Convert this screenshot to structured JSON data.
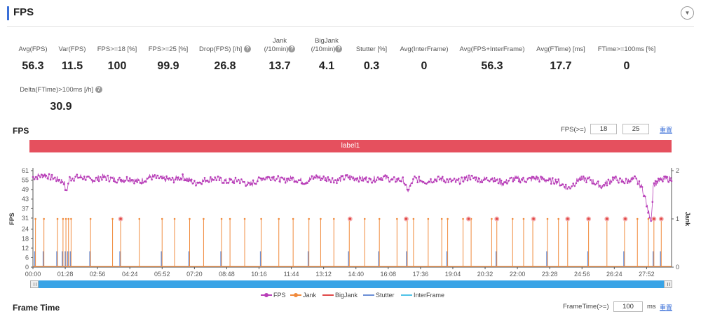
{
  "section": {
    "title": "FPS"
  },
  "stats_row1": [
    {
      "label": "Avg(FPS)",
      "value": "56.3"
    },
    {
      "label": "Var(FPS)",
      "value": "11.5"
    },
    {
      "label": "FPS>=18 [%]",
      "value": "100"
    },
    {
      "label": "FPS>=25 [%]",
      "value": "99.9"
    },
    {
      "label": "Drop(FPS) [/h]",
      "value": "26.8"
    },
    {
      "label": "Jank",
      "label2": "(/10min)",
      "value": "13.7"
    },
    {
      "label": "BigJank",
      "label2": "(/10min)",
      "value": "4.1"
    },
    {
      "label": "Stutter [%]",
      "value": "0.3"
    },
    {
      "label": "Avg(InterFrame)",
      "value": "0"
    },
    {
      "label": "Avg(FPS+InterFrame)",
      "value": "56.3"
    },
    {
      "label": "Avg(FTime) [ms]",
      "value": "17.7"
    },
    {
      "label": "FTime>=100ms [%]",
      "value": "0"
    }
  ],
  "stats_row2": [
    {
      "label": "Delta(FTime)>100ms [/h]",
      "value": "30.9"
    }
  ],
  "fps_chart": {
    "title": "FPS",
    "threshold_label": "FPS(>=)",
    "threshold1": "18",
    "threshold2": "25",
    "reset_label": "重置",
    "label_band": "label1",
    "y_axis_title": "FPS",
    "y2_axis_title": "Jank",
    "help_glyph": "?"
  },
  "legend": [
    "FPS",
    "Jank",
    "BigJank",
    "Stutter",
    "InterFrame"
  ],
  "frame_time": {
    "title": "Frame Time",
    "threshold_label": "FrameTime(>=)",
    "threshold_value": "100",
    "unit": "ms",
    "reset_label": "重置"
  },
  "colors": {
    "fps": "#b83eb8",
    "jank": "#f08a3c",
    "bigjank": "#e04848",
    "stutter": "#6b8fd6",
    "interframe": "#4fc3e8",
    "label_band": "#e5505e",
    "slider": "#38a3e6"
  },
  "chart_data": {
    "type": "line",
    "x_label": "",
    "y_label": "FPS",
    "y2_label": "Jank",
    "ylim": [
      0,
      61
    ],
    "y_ticks": [
      0,
      6,
      12,
      18,
      24,
      31,
      37,
      43,
      49,
      55,
      61
    ],
    "y2lim": [
      0,
      2
    ],
    "y2_ticks": [
      0,
      1,
      2
    ],
    "x_ticks": [
      "00:00",
      "01:28",
      "02:56",
      "04:24",
      "05:52",
      "07:20",
      "08:48",
      "10:16",
      "11:44",
      "13:12",
      "14:40",
      "16:08",
      "17:36",
      "19:04",
      "20:32",
      "22:00",
      "23:28",
      "24:56",
      "26:24",
      "27:52"
    ],
    "x_range_seconds": [
      0,
      1740
    ],
    "fps_series": {
      "name": "FPS",
      "points": [
        [
          0,
          57
        ],
        [
          30,
          58
        ],
        [
          60,
          56
        ],
        [
          85,
          54
        ],
        [
          90,
          47
        ],
        [
          100,
          56
        ],
        [
          130,
          57
        ],
        [
          160,
          55
        ],
        [
          190,
          57
        ],
        [
          230,
          55
        ],
        [
          260,
          56
        ],
        [
          290,
          54
        ],
        [
          320,
          57
        ],
        [
          350,
          56
        ],
        [
          380,
          55
        ],
        [
          410,
          57
        ],
        [
          440,
          53
        ],
        [
          470,
          55
        ],
        [
          500,
          56
        ],
        [
          530,
          54
        ],
        [
          560,
          55
        ],
        [
          590,
          52
        ],
        [
          620,
          56
        ],
        [
          650,
          57
        ],
        [
          680,
          55
        ],
        [
          710,
          56
        ],
        [
          740,
          54
        ],
        [
          770,
          57
        ],
        [
          800,
          56
        ],
        [
          830,
          55
        ],
        [
          860,
          57
        ],
        [
          890,
          56
        ],
        [
          920,
          55
        ],
        [
          950,
          57
        ],
        [
          980,
          55
        ],
        [
          1010,
          55
        ],
        [
          1020,
          48
        ],
        [
          1040,
          56
        ],
        [
          1070,
          54
        ],
        [
          1100,
          56
        ],
        [
          1130,
          55
        ],
        [
          1160,
          54
        ],
        [
          1190,
          57
        ],
        [
          1220,
          55
        ],
        [
          1250,
          56
        ],
        [
          1280,
          53
        ],
        [
          1310,
          56
        ],
        [
          1340,
          55
        ],
        [
          1370,
          56
        ],
        [
          1400,
          55
        ],
        [
          1430,
          54
        ],
        [
          1460,
          50
        ],
        [
          1490,
          56
        ],
        [
          1520,
          55
        ],
        [
          1550,
          51
        ],
        [
          1580,
          56
        ],
        [
          1610,
          54
        ],
        [
          1640,
          56
        ],
        [
          1660,
          50
        ],
        [
          1670,
          42
        ],
        [
          1675,
          36
        ],
        [
          1680,
          33
        ],
        [
          1685,
          30
        ],
        [
          1690,
          52
        ],
        [
          1710,
          55
        ],
        [
          1740,
          56
        ]
      ]
    },
    "jank_events_seconds": [
      5,
      28,
      65,
      80,
      88,
      95,
      102,
      155,
      215,
      237,
      288,
      350,
      384,
      425,
      463,
      512,
      535,
      575,
      620,
      668,
      707,
      750,
      782,
      818,
      860,
      902,
      942,
      990,
      1018,
      1035,
      1075,
      1112,
      1128,
      1170,
      1192,
      1248,
      1262,
      1305,
      1335,
      1360,
      1400,
      1430,
      1455,
      1512,
      1562,
      1610,
      1645,
      1675,
      1690,
      1710
    ],
    "bigjank_events_seconds": [
      237,
      862,
      1015,
      1185,
      1262,
      1362,
      1455,
      1512,
      1562,
      1612,
      1690,
      1710
    ],
    "stutter_events_seconds": [
      5,
      28,
      65,
      80,
      88,
      95,
      102,
      155,
      237,
      350,
      425,
      512,
      620,
      750,
      860,
      942,
      1018,
      1128,
      1262,
      1400,
      1512,
      1610,
      1690,
      1710
    ],
    "interframe": []
  }
}
